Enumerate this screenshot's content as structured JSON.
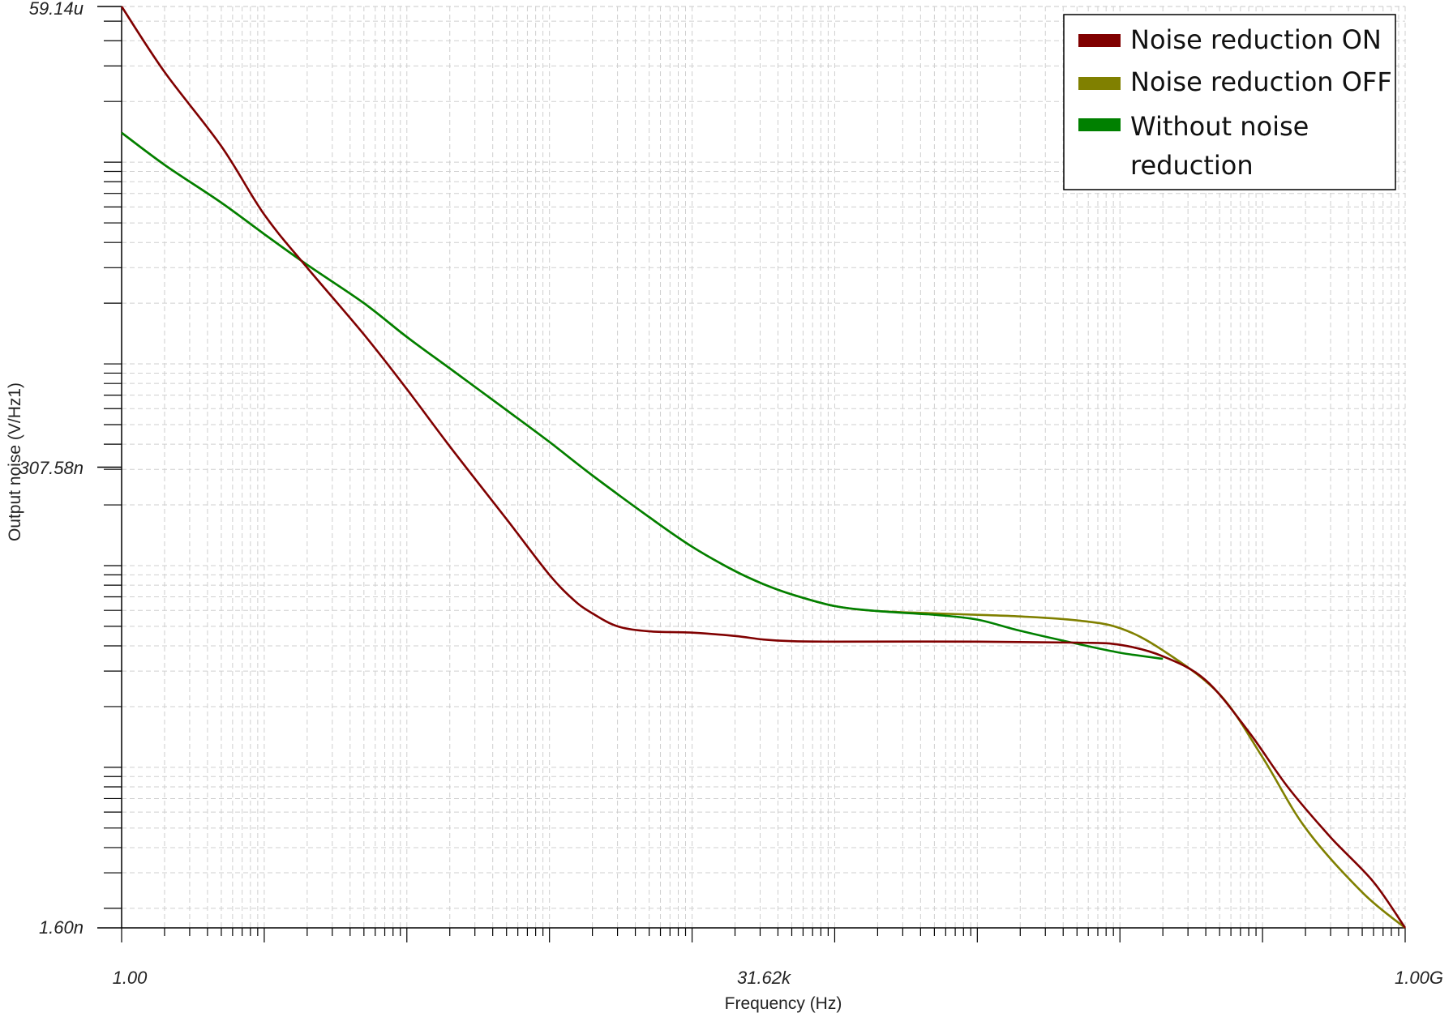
{
  "chart_data": {
    "type": "line",
    "title": "",
    "xlabel": "Frequency (Hz)",
    "ylabel": "Output noise (V/Hz1)",
    "x_scale": "log",
    "y_scale": "log",
    "xlim": [
      1,
      1000000000
    ],
    "ylim": [
      1.6e-09,
      5.914e-05
    ],
    "x_tick_labels": [
      "1.00",
      "31.62k",
      "1.00G"
    ],
    "y_tick_labels": [
      "59.14u",
      "307.58n",
      "1.60n"
    ],
    "grid": true,
    "legend_position": "top-right",
    "series": [
      {
        "name": "Noise reduction ON",
        "color": "#800000",
        "points": [
          [
            1,
            5.914e-05
          ],
          [
            2,
            2.8e-05
          ],
          [
            5,
            1.2e-05
          ],
          [
            10,
            5.5e-06
          ],
          [
            20,
            3e-06
          ],
          [
            50,
            1.4e-06
          ],
          [
            100,
            7.5e-07
          ],
          [
            200,
            3.9e-07
          ],
          [
            500,
            1.7e-07
          ],
          [
            1000,
            9e-08
          ],
          [
            1500,
            6.7e-08
          ],
          [
            2000,
            5.8e-08
          ],
          [
            3000,
            5e-08
          ],
          [
            5000,
            4.72e-08
          ],
          [
            10000,
            4.65e-08
          ],
          [
            20000,
            4.48e-08
          ],
          [
            31620,
            4.3e-08
          ],
          [
            50000,
            4.22e-08
          ],
          [
            100000,
            4.2e-08
          ],
          [
            1000000,
            4.2e-08
          ],
          [
            5000000,
            4.15e-08
          ],
          [
            10000000,
            4.05e-08
          ],
          [
            20000000,
            3.55e-08
          ],
          [
            40000000,
            2.7e-08
          ],
          [
            80000000,
            1.5e-08
          ],
          [
            150000000,
            8e-09
          ],
          [
            300000000,
            4.5e-09
          ],
          [
            600000000,
            2.7e-09
          ],
          [
            1000000000,
            1.6e-09
          ]
        ]
      },
      {
        "name": "Noise reduction OFF",
        "color": "#808000",
        "points": [
          [
            1,
            1.4e-05
          ],
          [
            2,
            9.7e-06
          ],
          [
            5,
            6.3e-06
          ],
          [
            10,
            4.4e-06
          ],
          [
            20,
            3.1e-06
          ],
          [
            50,
            2e-06
          ],
          [
            100,
            1.36e-06
          ],
          [
            200,
            9.5e-07
          ],
          [
            500,
            5.9e-07
          ],
          [
            1000,
            4.1e-07
          ],
          [
            2000,
            2.8e-07
          ],
          [
            5000,
            1.74e-07
          ],
          [
            10000,
            1.24e-07
          ],
          [
            20000,
            9.4e-08
          ],
          [
            31620,
            8.1e-08
          ],
          [
            50000,
            7.2e-08
          ],
          [
            100000,
            6.3e-08
          ],
          [
            200000,
            5.95e-08
          ],
          [
            500000,
            5.8e-08
          ],
          [
            1000000,
            5.7e-08
          ],
          [
            2000000,
            5.6e-08
          ],
          [
            5000000,
            5.35e-08
          ],
          [
            10000000,
            4.9e-08
          ],
          [
            20000000,
            3.8e-08
          ],
          [
            50000000,
            2.3e-08
          ],
          [
            100000000,
            1.12e-08
          ],
          [
            200000000,
            5e-09
          ],
          [
            500000000,
            2.4e-09
          ],
          [
            1000000000,
            1.6e-09
          ]
        ]
      },
      {
        "name": "Without noise reduction",
        "color": "#008000",
        "points": [
          [
            1,
            1.4e-05
          ],
          [
            2,
            9.7e-06
          ],
          [
            5,
            6.3e-06
          ],
          [
            10,
            4.4e-06
          ],
          [
            20,
            3.1e-06
          ],
          [
            50,
            2e-06
          ],
          [
            100,
            1.36e-06
          ],
          [
            200,
            9.5e-07
          ],
          [
            500,
            5.9e-07
          ],
          [
            1000,
            4.1e-07
          ],
          [
            2000,
            2.8e-07
          ],
          [
            5000,
            1.74e-07
          ],
          [
            10000,
            1.24e-07
          ],
          [
            20000,
            9.4e-08
          ],
          [
            31620,
            8.1e-08
          ],
          [
            50000,
            7.2e-08
          ],
          [
            100000,
            6.3e-08
          ],
          [
            200000,
            5.95e-08
          ],
          [
            500000,
            5.7e-08
          ],
          [
            1000000,
            5.4e-08
          ],
          [
            2000000,
            4.75e-08
          ],
          [
            5000000,
            4.1e-08
          ],
          [
            10000000,
            3.7e-08
          ],
          [
            20000000,
            3.45e-08
          ]
        ]
      }
    ]
  },
  "legend": {
    "items": [
      {
        "lines": [
          "Noise reduction ON"
        ],
        "color": "#800000"
      },
      {
        "lines": [
          "Noise reduction OFF"
        ],
        "color": "#808000"
      },
      {
        "lines": [
          "Without noise",
          "reduction"
        ],
        "color": "#008000"
      }
    ]
  }
}
